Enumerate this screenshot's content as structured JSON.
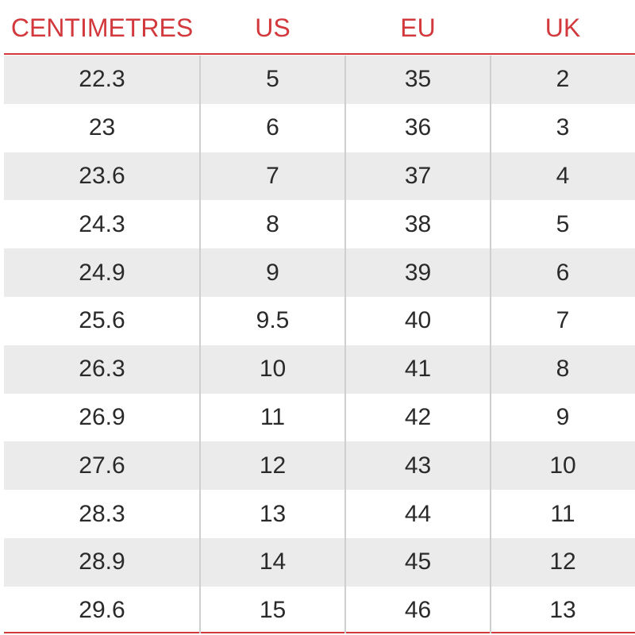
{
  "table": {
    "columns": [
      "CENTIMETRES",
      "US",
      "EU",
      "UK"
    ],
    "rows": [
      [
        "22.3",
        "5",
        "35",
        "2"
      ],
      [
        "23",
        "6",
        "36",
        "3"
      ],
      [
        "23.6",
        "7",
        "37",
        "4"
      ],
      [
        "24.3",
        "8",
        "38",
        "5"
      ],
      [
        "24.9",
        "9",
        "39",
        "6"
      ],
      [
        "25.6",
        "9.5",
        "40",
        "7"
      ],
      [
        "26.3",
        "10",
        "41",
        "8"
      ],
      [
        "26.9",
        "11",
        "42",
        "9"
      ],
      [
        "27.6",
        "12",
        "43",
        "10"
      ],
      [
        "28.3",
        "13",
        "44",
        "11"
      ],
      [
        "28.9",
        "14",
        "45",
        "12"
      ],
      [
        "29.6",
        "15",
        "46",
        "13"
      ]
    ]
  }
}
